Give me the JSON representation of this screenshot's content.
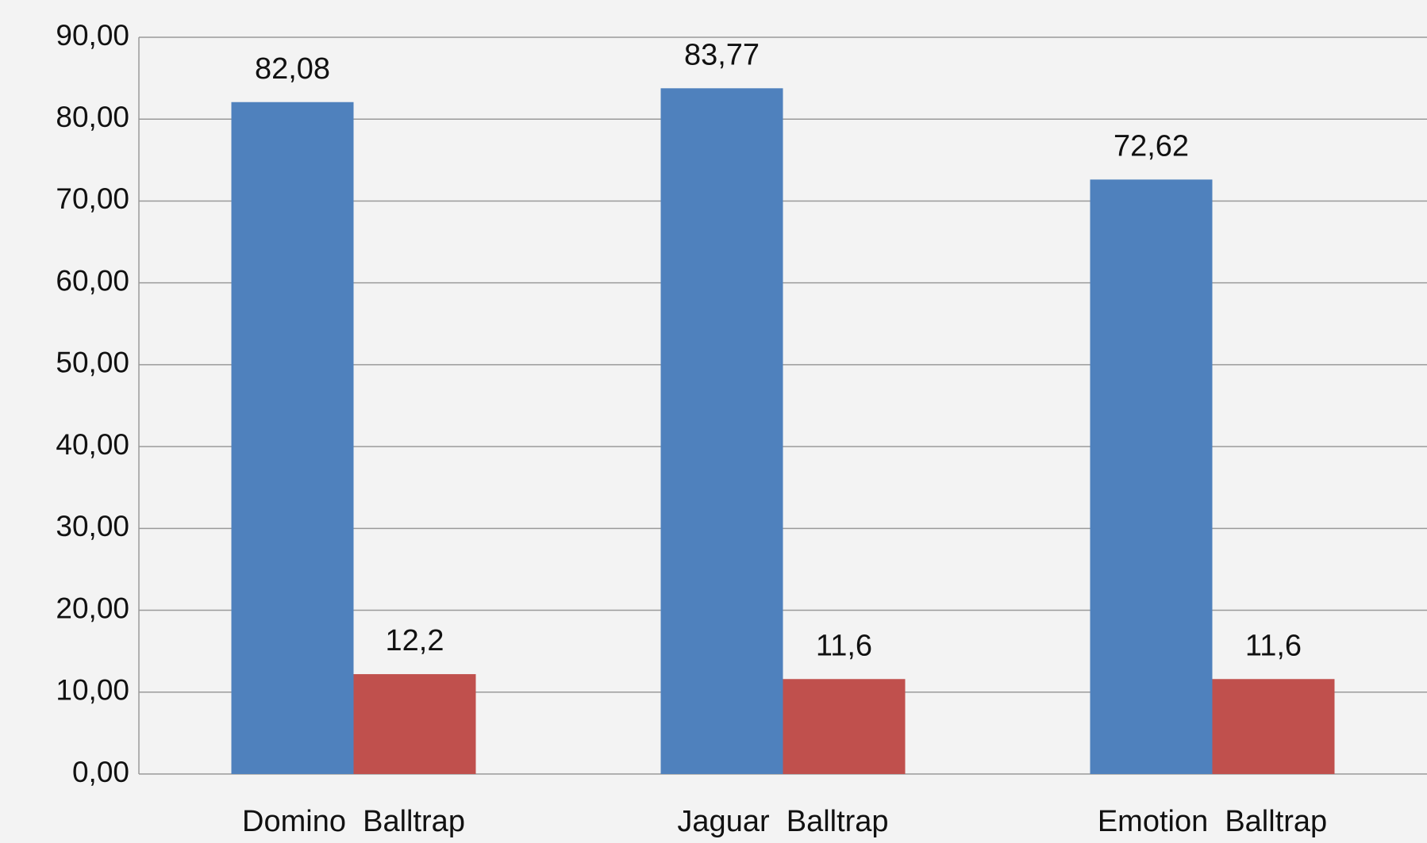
{
  "chart_data": {
    "type": "bar",
    "categories": [
      "Domino  Balltrap",
      "Jaguar  Balltrap",
      "Emotion  Balltrap"
    ],
    "series": [
      {
        "color": "#4f81bd",
        "values": [
          82.08,
          83.77,
          72.62
        ],
        "value_labels": [
          "82,08",
          "83,77",
          "72,62"
        ]
      },
      {
        "color": "#c0504d",
        "values": [
          12.2,
          11.6,
          11.6
        ],
        "value_labels": [
          "12,2",
          "11,6",
          "11,6"
        ]
      }
    ],
    "ylim": [
      0,
      90
    ],
    "yticks": [
      {
        "value": 0,
        "label": "0,00"
      },
      {
        "value": 10,
        "label": "10,00"
      },
      {
        "value": 20,
        "label": "20,00"
      },
      {
        "value": 30,
        "label": "30,00"
      },
      {
        "value": 40,
        "label": "40,00"
      },
      {
        "value": 50,
        "label": "50,00"
      },
      {
        "value": 60,
        "label": "60,00"
      },
      {
        "value": 70,
        "label": "70,00"
      },
      {
        "value": 80,
        "label": "80,00"
      },
      {
        "value": 90,
        "label": "90,00"
      }
    ],
    "grid": true
  }
}
